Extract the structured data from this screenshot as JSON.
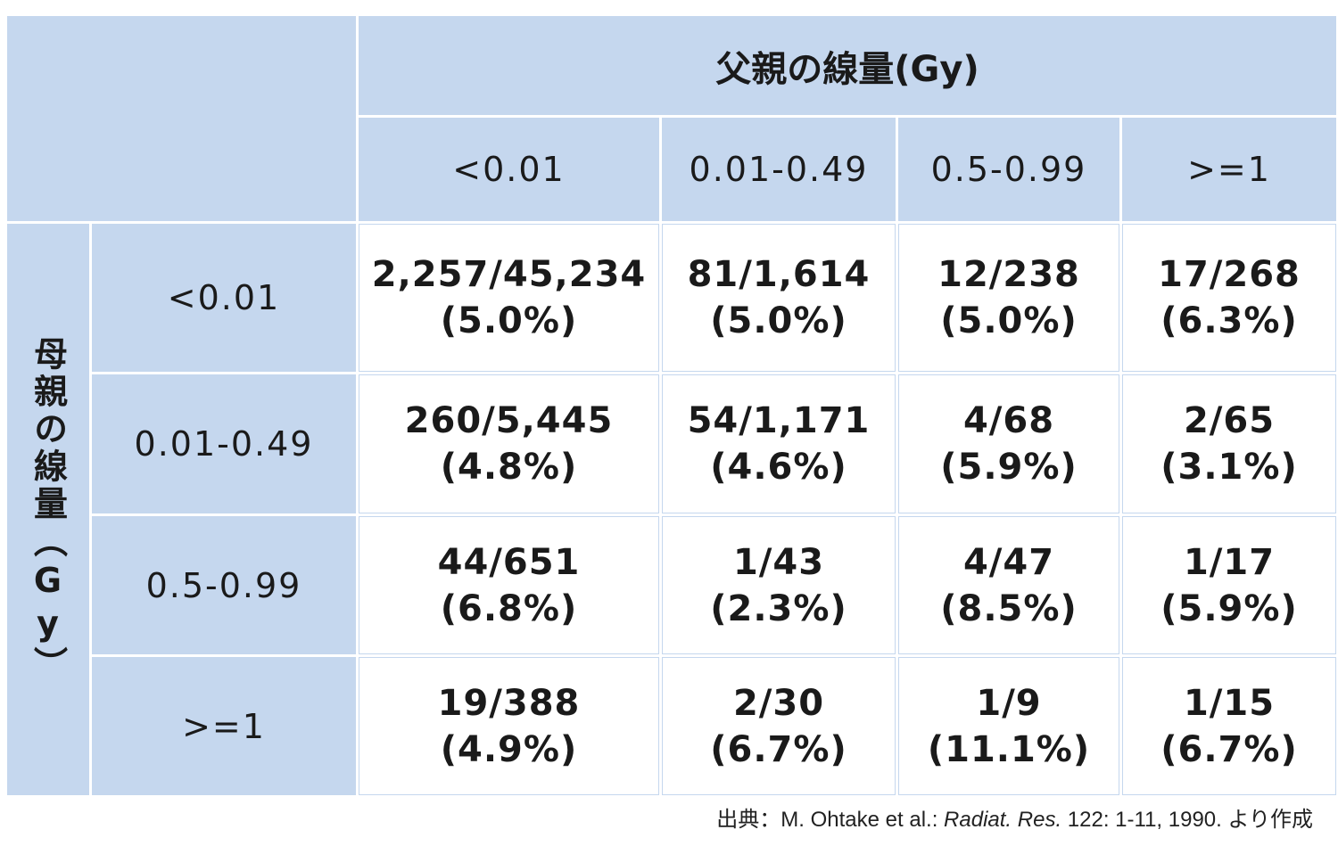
{
  "table": {
    "father_title": "父親の線量(Gy)",
    "mother_title": "母親の線量（Gy）",
    "columns": [
      "<0.01",
      "0.01-0.49",
      "0.5-0.99",
      ">=1"
    ],
    "rows": [
      {
        "label": "<0.01",
        "cells": [
          {
            "count": "2,257/45,234",
            "pct": "(5.0%)"
          },
          {
            "count": "81/1,614",
            "pct": "(5.0%)"
          },
          {
            "count": "12/238",
            "pct": "(5.0%)"
          },
          {
            "count": "17/268",
            "pct": "(6.3%)"
          }
        ]
      },
      {
        "label": "0.01-0.49",
        "cells": [
          {
            "count": "260/5,445",
            "pct": "(4.8%)"
          },
          {
            "count": "54/1,171",
            "pct": "(4.6%)"
          },
          {
            "count": "4/68",
            "pct": "(5.9%)"
          },
          {
            "count": "2/65",
            "pct": "(3.1%)"
          }
        ]
      },
      {
        "label": "0.5-0.99",
        "cells": [
          {
            "count": "44/651",
            "pct": "(6.8%)"
          },
          {
            "count": "1/43",
            "pct": "(2.3%)"
          },
          {
            "count": "4/47",
            "pct": "(8.5%)"
          },
          {
            "count": "1/17",
            "pct": "(5.9%)"
          }
        ]
      },
      {
        "label": ">=1",
        "cells": [
          {
            "count": "19/388",
            "pct": "(4.9%)"
          },
          {
            "count": "2/30",
            "pct": "(6.7%)"
          },
          {
            "count": "1/9",
            "pct": "(11.1%)"
          },
          {
            "count": "1/15",
            "pct": "(6.7%)"
          }
        ]
      }
    ]
  },
  "source": {
    "prefix": "出典：M. Ohtake et al.: ",
    "journal": "Radiat. Res.",
    "suffix": " 122: 1-11, 1990. より作成"
  },
  "colors": {
    "header_bg": "#c5d7ee",
    "cell_bg": "#ffffff"
  }
}
